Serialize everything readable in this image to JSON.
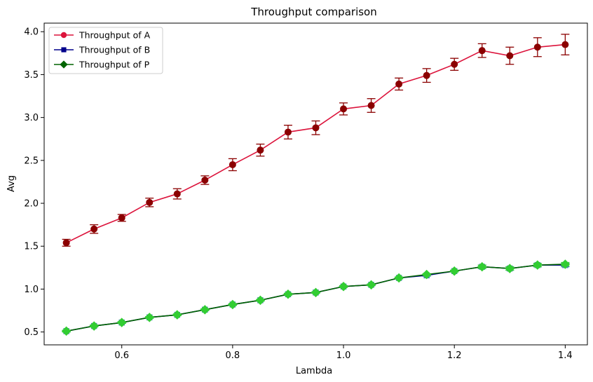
{
  "chart_data": {
    "type": "line",
    "title": "Throughput comparison",
    "xlabel": "Lambda",
    "ylabel": "Avg",
    "xlim": [
      0.46,
      1.44
    ],
    "ylim": [
      0.35,
      4.1
    ],
    "xticks": [
      0.6,
      0.8,
      1.0,
      1.2,
      1.4
    ],
    "xtick_labels": [
      "0.6",
      "0.8",
      "1.0",
      "1.2",
      "1.4"
    ],
    "yticks": [
      0.5,
      1.0,
      1.5,
      2.0,
      2.5,
      3.0,
      3.5,
      4.0
    ],
    "ytick_labels": [
      "0.5",
      "1.0",
      "1.5",
      "2.0",
      "2.5",
      "3.0",
      "3.5",
      "4.0"
    ],
    "grid": false,
    "legend_position": "upper-left",
    "x": [
      0.5,
      0.55,
      0.6,
      0.65,
      0.7,
      0.75,
      0.8,
      0.85,
      0.9,
      0.95,
      1.0,
      1.05,
      1.1,
      1.15,
      1.2,
      1.25,
      1.3,
      1.35,
      1.4
    ],
    "series": [
      {
        "name": "Throughput of A",
        "color": "#dc143c",
        "marker": "circle",
        "errorbar_color": "#8b0000",
        "values": [
          1.54,
          1.7,
          1.83,
          2.01,
          2.11,
          2.27,
          2.45,
          2.62,
          2.83,
          2.88,
          3.1,
          3.14,
          3.39,
          3.49,
          3.62,
          3.78,
          3.72,
          3.82,
          3.85
        ],
        "errors": [
          0.04,
          0.05,
          0.04,
          0.05,
          0.06,
          0.05,
          0.07,
          0.07,
          0.08,
          0.08,
          0.07,
          0.08,
          0.07,
          0.08,
          0.07,
          0.08,
          0.1,
          0.11,
          0.12
        ]
      },
      {
        "name": "Throughput of B",
        "color": "#00008b",
        "marker": "square",
        "errorbar_color": "#4682b4",
        "values": [
          0.51,
          0.57,
          0.61,
          0.67,
          0.7,
          0.76,
          0.82,
          0.87,
          0.94,
          0.96,
          1.03,
          1.05,
          1.13,
          1.16,
          1.21,
          1.26,
          1.24,
          1.28,
          1.28
        ],
        "errors": [
          0.01,
          0.01,
          0.01,
          0.01,
          0.01,
          0.01,
          0.01,
          0.01,
          0.01,
          0.01,
          0.01,
          0.01,
          0.01,
          0.01,
          0.01,
          0.02,
          0.02,
          0.02,
          0.02
        ]
      },
      {
        "name": "Throughput of P",
        "color": "#006400",
        "marker": "diamond",
        "errorbar_color": "#32cd32",
        "values": [
          0.51,
          0.57,
          0.61,
          0.67,
          0.7,
          0.76,
          0.82,
          0.87,
          0.94,
          0.96,
          1.03,
          1.05,
          1.13,
          1.17,
          1.21,
          1.26,
          1.24,
          1.28,
          1.29
        ],
        "errors": [
          0.01,
          0.01,
          0.01,
          0.01,
          0.01,
          0.01,
          0.01,
          0.01,
          0.01,
          0.01,
          0.01,
          0.01,
          0.01,
          0.01,
          0.01,
          0.02,
          0.02,
          0.02,
          0.02
        ]
      }
    ]
  }
}
